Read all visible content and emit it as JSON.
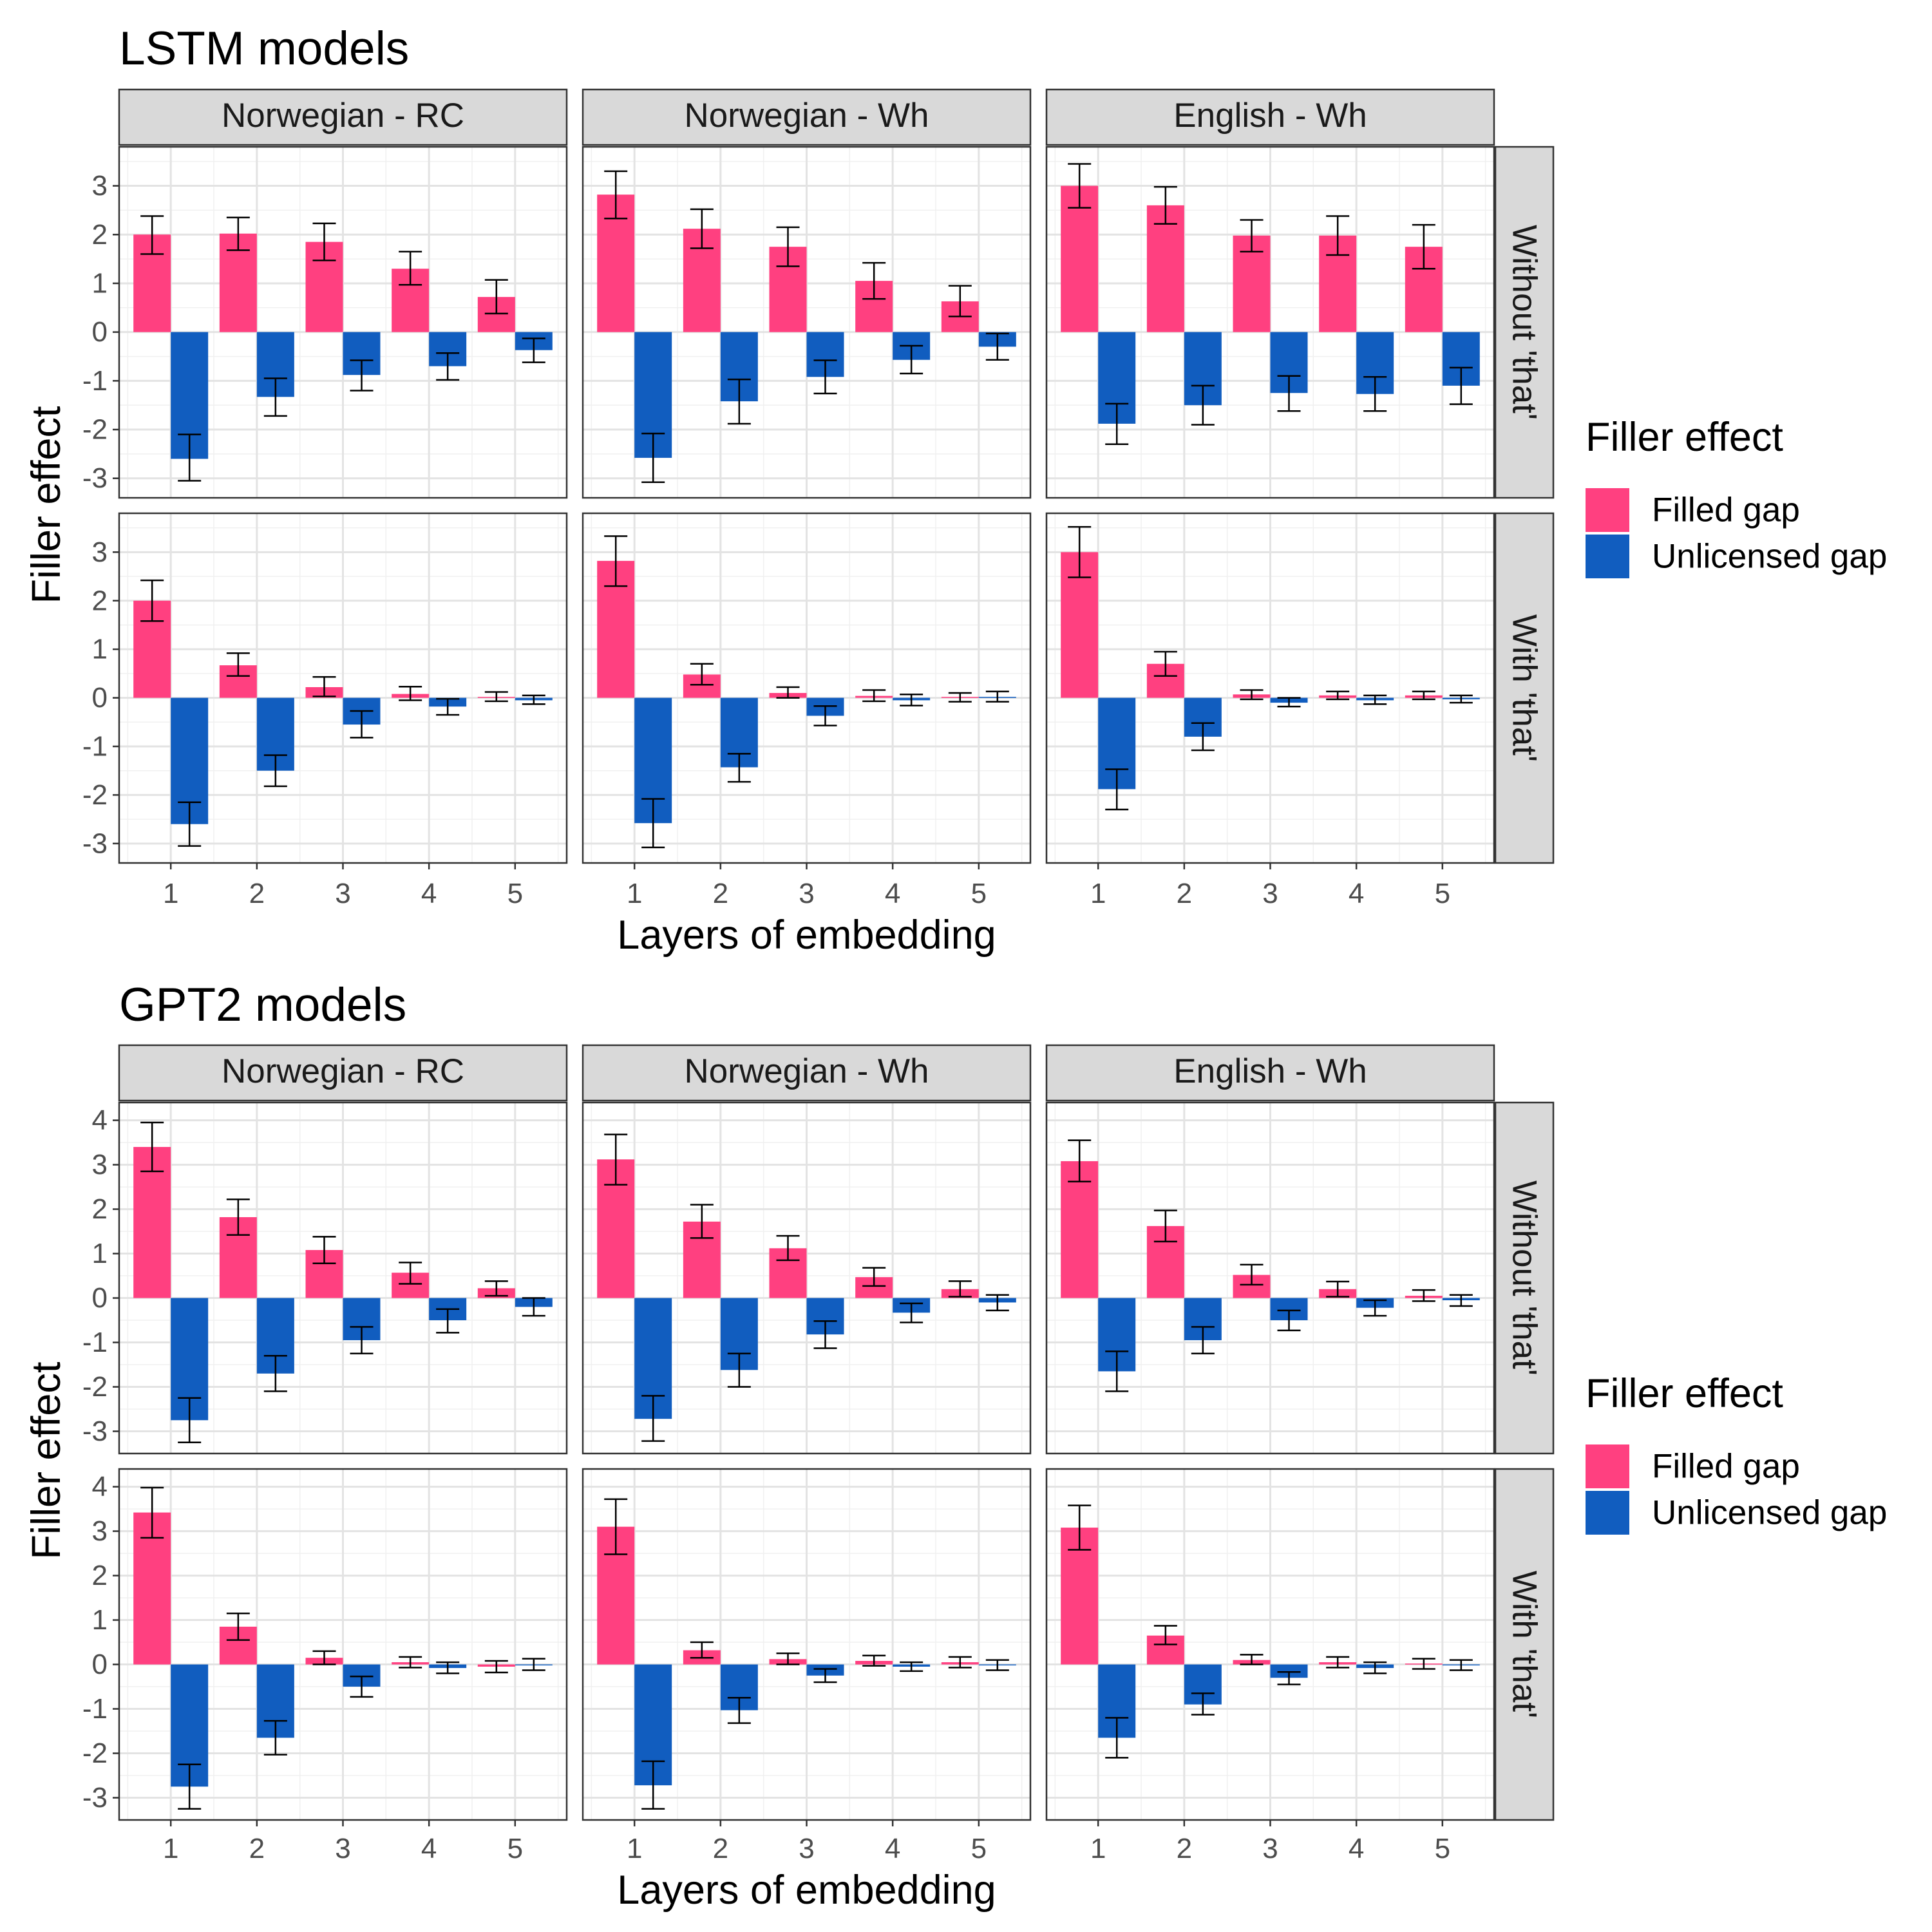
{
  "colors": {
    "Filled gap": "#FF4080",
    "Unlicensed gap": "#115DBF"
  },
  "chart_data": [
    {
      "type": "bar",
      "title": "LSTM models",
      "xlabel": "Layers of embedding",
      "ylabel": "Filler effect",
      "x": [
        1,
        2,
        3,
        4,
        5
      ],
      "x_tick_labels": [
        "1",
        "2",
        "3",
        "4",
        "5"
      ],
      "ylim": [
        -3.4,
        3.8
      ],
      "y_ticks": [
        -3,
        -2,
        -1,
        0,
        1,
        2,
        3
      ],
      "y_tick_labels": [
        "-3",
        "-2",
        "-1",
        "0",
        "1",
        "2",
        "3"
      ],
      "grid": true,
      "legend": {
        "title": "Filler effect",
        "position": "right",
        "entries": [
          "Filled gap",
          "Unlicensed gap"
        ]
      },
      "column_facets": [
        "Norwegian - RC",
        "Norwegian - Wh",
        "English - Wh"
      ],
      "row_facets": [
        "Without 'that'",
        "With 'that'"
      ],
      "panels": [
        {
          "column": "Norwegian - RC",
          "row": "Without 'that'",
          "series": [
            {
              "name": "Filled gap",
              "values": [
                2.0,
                2.02,
                1.85,
                1.3,
                0.72
              ],
              "err_low": [
                1.6,
                1.68,
                1.47,
                0.97,
                0.38
              ],
              "err_high": [
                2.38,
                2.35,
                2.23,
                1.65,
                1.07
              ]
            },
            {
              "name": "Unlicensed gap",
              "values": [
                -2.6,
                -1.33,
                -0.88,
                -0.7,
                -0.37
              ],
              "err_low": [
                -3.05,
                -1.72,
                -1.2,
                -0.98,
                -0.62
              ],
              "err_high": [
                -2.1,
                -0.95,
                -0.58,
                -0.43,
                -0.13
              ]
            }
          ]
        },
        {
          "column": "Norwegian - Wh",
          "row": "Without 'that'",
          "series": [
            {
              "name": "Filled gap",
              "values": [
                2.82,
                2.12,
                1.75,
                1.05,
                0.63
              ],
              "err_low": [
                2.33,
                1.72,
                1.35,
                0.68,
                0.32
              ],
              "err_high": [
                3.3,
                2.52,
                2.15,
                1.42,
                0.95
              ]
            },
            {
              "name": "Unlicensed gap",
              "values": [
                -2.58,
                -1.42,
                -0.92,
                -0.57,
                -0.3
              ],
              "err_low": [
                -3.08,
                -1.88,
                -1.26,
                -0.85,
                -0.57
              ],
              "err_high": [
                -2.08,
                -0.97,
                -0.58,
                -0.28,
                -0.03
              ]
            }
          ]
        },
        {
          "column": "English - Wh",
          "row": "Without 'that'",
          "series": [
            {
              "name": "Filled gap",
              "values": [
                3.0,
                2.6,
                1.98,
                1.98,
                1.75
              ],
              "err_low": [
                2.55,
                2.22,
                1.65,
                1.58,
                1.3
              ],
              "err_high": [
                3.45,
                2.98,
                2.3,
                2.38,
                2.2
              ]
            },
            {
              "name": "Unlicensed gap",
              "values": [
                -1.88,
                -1.5,
                -1.25,
                -1.27,
                -1.1
              ],
              "err_low": [
                -2.3,
                -1.9,
                -1.62,
                -1.62,
                -1.48
              ],
              "err_high": [
                -1.47,
                -1.1,
                -0.9,
                -0.92,
                -0.73
              ]
            }
          ]
        },
        {
          "column": "Norwegian - RC",
          "row": "With 'that'",
          "series": [
            {
              "name": "Filled gap",
              "values": [
                2.0,
                0.67,
                0.22,
                0.08,
                0.02
              ],
              "err_low": [
                1.58,
                0.45,
                0.03,
                -0.05,
                -0.07
              ],
              "err_high": [
                2.42,
                0.92,
                0.43,
                0.23,
                0.12
              ]
            },
            {
              "name": "Unlicensed gap",
              "values": [
                -2.6,
                -1.5,
                -0.55,
                -0.18,
                -0.05
              ],
              "err_low": [
                -3.05,
                -1.82,
                -0.82,
                -0.35,
                -0.13
              ],
              "err_high": [
                -2.15,
                -1.18,
                -0.27,
                -0.02,
                0.05
              ]
            }
          ]
        },
        {
          "column": "Norwegian - Wh",
          "row": "With 'that'",
          "series": [
            {
              "name": "Filled gap",
              "values": [
                2.82,
                0.48,
                0.1,
                0.04,
                0.02
              ],
              "err_low": [
                2.3,
                0.27,
                0.0,
                -0.07,
                -0.08
              ],
              "err_high": [
                3.33,
                0.7,
                0.22,
                0.16,
                0.1
              ]
            },
            {
              "name": "Unlicensed gap",
              "values": [
                -2.58,
                -1.43,
                -0.37,
                -0.05,
                0.02
              ],
              "err_low": [
                -3.08,
                -1.73,
                -0.57,
                -0.16,
                -0.08
              ],
              "err_high": [
                -2.08,
                -1.15,
                -0.17,
                0.07,
                0.13
              ]
            }
          ]
        },
        {
          "column": "English - Wh",
          "row": "With 'that'",
          "series": [
            {
              "name": "Filled gap",
              "values": [
                3.0,
                0.7,
                0.07,
                0.05,
                0.05
              ],
              "err_low": [
                2.48,
                0.45,
                -0.03,
                -0.03,
                -0.03
              ],
              "err_high": [
                3.52,
                0.95,
                0.16,
                0.13,
                0.13
              ]
            },
            {
              "name": "Unlicensed gap",
              "values": [
                -1.88,
                -0.8,
                -0.1,
                -0.05,
                -0.03
              ],
              "err_low": [
                -2.3,
                -1.08,
                -0.18,
                -0.13,
                -0.1
              ],
              "err_high": [
                -1.47,
                -0.52,
                0.0,
                0.05,
                0.05
              ]
            }
          ]
        }
      ]
    },
    {
      "type": "bar",
      "title": "GPT2 models",
      "xlabel": "Layers of embedding",
      "ylabel": "Filler effect",
      "x": [
        1,
        2,
        3,
        4,
        5
      ],
      "x_tick_labels": [
        "1",
        "2",
        "3",
        "4",
        "5"
      ],
      "ylim": [
        -3.5,
        4.4
      ],
      "y_ticks": [
        -3,
        -2,
        -1,
        0,
        1,
        2,
        3,
        4
      ],
      "y_tick_labels": [
        "-3",
        "-2",
        "-1",
        "0",
        "1",
        "2",
        "3",
        "4"
      ],
      "grid": true,
      "legend": {
        "title": "Filler effect",
        "position": "right",
        "entries": [
          "Filled gap",
          "Unlicensed gap"
        ]
      },
      "column_facets": [
        "Norwegian - RC",
        "Norwegian - Wh",
        "English - Wh"
      ],
      "row_facets": [
        "Without 'that'",
        "With 'that'"
      ],
      "panels": [
        {
          "column": "Norwegian - RC",
          "row": "Without 'that'",
          "series": [
            {
              "name": "Filled gap",
              "values": [
                3.4,
                1.82,
                1.08,
                0.57,
                0.22
              ],
              "err_low": [
                2.85,
                1.42,
                0.78,
                0.32,
                0.05
              ],
              "err_high": [
                3.95,
                2.22,
                1.38,
                0.8,
                0.38
              ]
            },
            {
              "name": "Unlicensed gap",
              "values": [
                -2.75,
                -1.7,
                -0.95,
                -0.5,
                -0.2
              ],
              "err_low": [
                -3.25,
                -2.1,
                -1.25,
                -0.78,
                -0.4
              ],
              "err_high": [
                -2.25,
                -1.3,
                -0.65,
                -0.25,
                0.0
              ]
            }
          ]
        },
        {
          "column": "Norwegian - Wh",
          "row": "Without 'that'",
          "series": [
            {
              "name": "Filled gap",
              "values": [
                3.12,
                1.72,
                1.12,
                0.47,
                0.2
              ],
              "err_low": [
                2.55,
                1.35,
                0.85,
                0.27,
                0.03
              ],
              "err_high": [
                3.68,
                2.1,
                1.4,
                0.68,
                0.38
              ]
            },
            {
              "name": "Unlicensed gap",
              "values": [
                -2.72,
                -1.62,
                -0.82,
                -0.33,
                -0.1
              ],
              "err_low": [
                -3.22,
                -2.0,
                -1.13,
                -0.55,
                -0.28
              ],
              "err_high": [
                -2.2,
                -1.25,
                -0.52,
                -0.12,
                0.07
              ]
            }
          ]
        },
        {
          "column": "English - Wh",
          "row": "Without 'that'",
          "series": [
            {
              "name": "Filled gap",
              "values": [
                3.08,
                1.62,
                0.52,
                0.2,
                0.05
              ],
              "err_low": [
                2.62,
                1.27,
                0.3,
                0.03,
                -0.07
              ],
              "err_high": [
                3.55,
                1.97,
                0.75,
                0.37,
                0.18
              ]
            },
            {
              "name": "Unlicensed gap",
              "values": [
                -1.65,
                -0.95,
                -0.5,
                -0.22,
                -0.05
              ],
              "err_low": [
                -2.1,
                -1.25,
                -0.73,
                -0.4,
                -0.18
              ],
              "err_high": [
                -1.2,
                -0.65,
                -0.28,
                -0.05,
                0.07
              ]
            }
          ]
        },
        {
          "column": "Norwegian - RC",
          "row": "With 'that'",
          "series": [
            {
              "name": "Filled gap",
              "values": [
                3.42,
                0.85,
                0.15,
                0.05,
                -0.05
              ],
              "err_low": [
                2.85,
                0.55,
                0.0,
                -0.07,
                -0.18
              ],
              "err_high": [
                3.98,
                1.15,
                0.3,
                0.17,
                0.08
              ]
            },
            {
              "name": "Unlicensed gap",
              "values": [
                -2.75,
                -1.65,
                -0.5,
                -0.08,
                0.0
              ],
              "err_low": [
                -3.25,
                -2.03,
                -0.73,
                -0.2,
                -0.13
              ],
              "err_high": [
                -2.25,
                -1.27,
                -0.27,
                0.05,
                0.13
              ]
            }
          ]
        },
        {
          "column": "Norwegian - Wh",
          "row": "With 'that'",
          "series": [
            {
              "name": "Filled gap",
              "values": [
                3.1,
                0.32,
                0.12,
                0.08,
                0.05
              ],
              "err_low": [
                2.48,
                0.15,
                0.0,
                -0.03,
                -0.07
              ],
              "err_high": [
                3.72,
                0.5,
                0.25,
                0.2,
                0.17
              ]
            },
            {
              "name": "Unlicensed gap",
              "values": [
                -2.72,
                -1.03,
                -0.25,
                -0.05,
                -0.02
              ],
              "err_low": [
                -3.25,
                -1.32,
                -0.4,
                -0.15,
                -0.13
              ],
              "err_high": [
                -2.18,
                -0.75,
                -0.1,
                0.05,
                0.1
              ]
            }
          ]
        },
        {
          "column": "English - Wh",
          "row": "With 'that'",
          "series": [
            {
              "name": "Filled gap",
              "values": [
                3.08,
                0.65,
                0.1,
                0.05,
                0.02
              ],
              "err_low": [
                2.58,
                0.45,
                0.0,
                -0.07,
                -0.1
              ],
              "err_high": [
                3.58,
                0.87,
                0.22,
                0.17,
                0.13
              ]
            },
            {
              "name": "Unlicensed gap",
              "values": [
                -1.65,
                -0.9,
                -0.3,
                -0.08,
                -0.02
              ],
              "err_low": [
                -2.1,
                -1.13,
                -0.45,
                -0.2,
                -0.13
              ],
              "err_high": [
                -1.2,
                -0.65,
                -0.17,
                0.05,
                0.1
              ]
            }
          ]
        }
      ]
    }
  ]
}
